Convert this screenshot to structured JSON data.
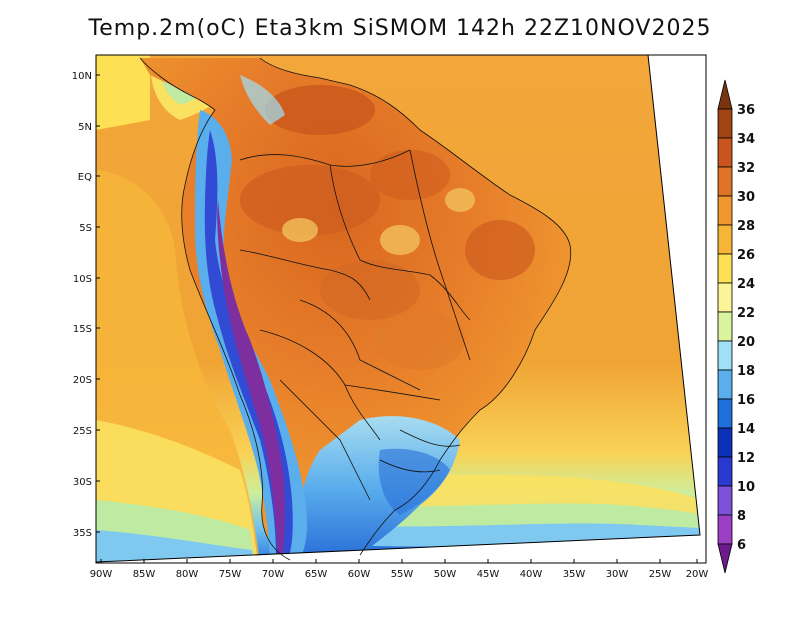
{
  "title": "Temp.2m(oC) Eta3km SiSMOM 142h 22Z10NOV2025",
  "map": {
    "lat_labels": [
      "10N",
      "5N",
      "EQ",
      "5S",
      "10S",
      "15S",
      "20S",
      "25S",
      "30S",
      "35S"
    ],
    "lon_labels": [
      "90W",
      "85W",
      "80W",
      "75W",
      "70W",
      "65W",
      "60W",
      "55W",
      "50W",
      "45W",
      "40W",
      "35W",
      "30W",
      "25W",
      "20W"
    ],
    "lat_range": [
      -38,
      12
    ],
    "lon_range": [
      -91,
      -20
    ]
  },
  "colorbar": {
    "labels": [
      "36",
      "34",
      "32",
      "30",
      "28",
      "26",
      "24",
      "22",
      "20",
      "18",
      "16",
      "14",
      "12",
      "10",
      "8",
      "6"
    ],
    "colors": [
      "#7a3410",
      "#a04414",
      "#c8561c",
      "#e07426",
      "#f0962e",
      "#f7b538",
      "#fde053",
      "#fbf597",
      "#d9f49d",
      "#9fe0f7",
      "#5aaeec",
      "#1e6fdc",
      "#0d30b8",
      "#2a3ad0",
      "#7d52d9",
      "#9b3fc5",
      "#6e1a8f"
    ]
  }
}
